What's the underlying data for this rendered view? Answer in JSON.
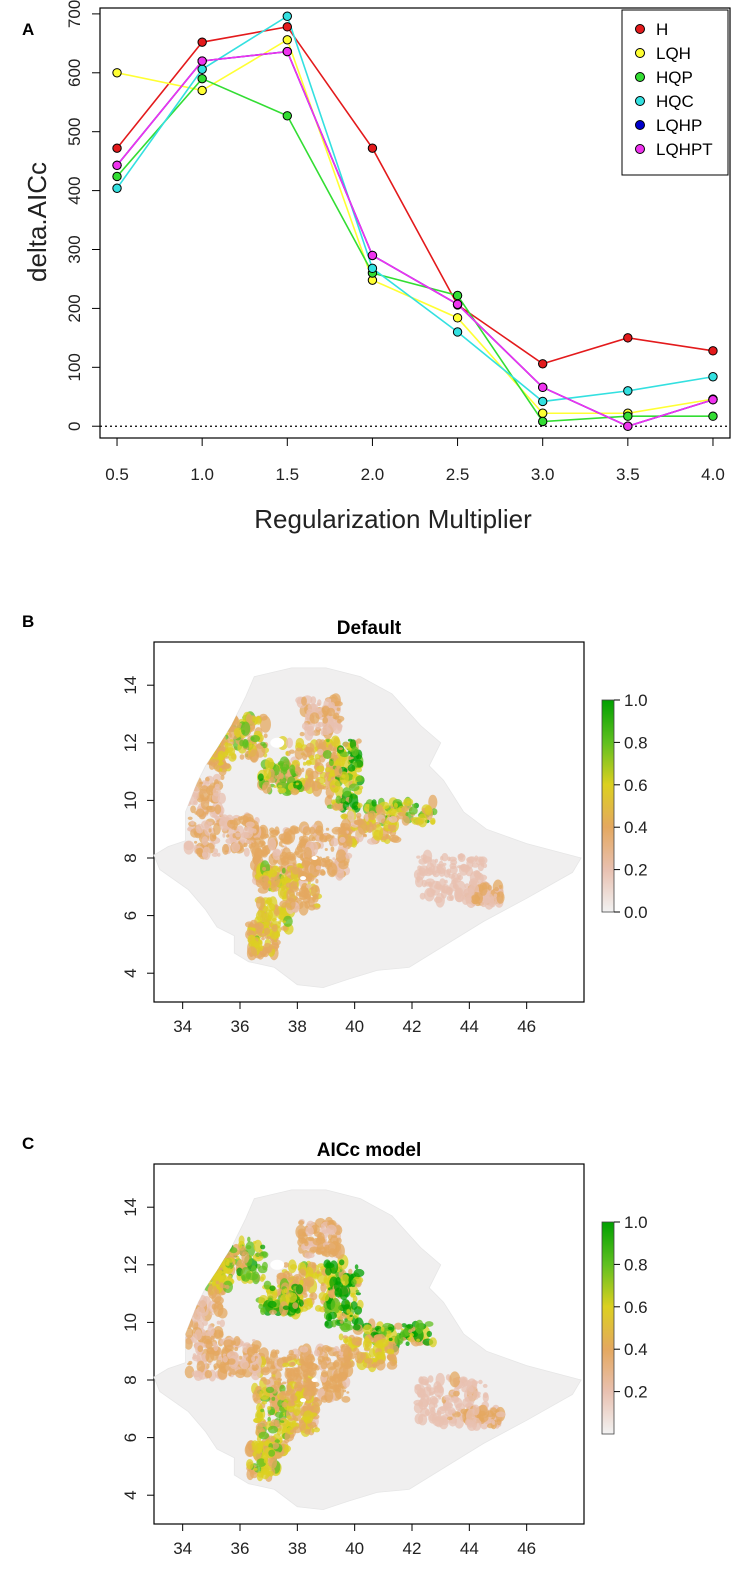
{
  "panels": {
    "a": {
      "letter": "A"
    },
    "b": {
      "letter": "B"
    },
    "c": {
      "letter": "C"
    }
  },
  "chart_data": [
    {
      "type": "line",
      "xlabel": "Regularization Multiplier",
      "ylabel": "delta.AICc",
      "x": [
        0.5,
        1.0,
        1.5,
        2.0,
        2.5,
        3.0,
        3.5,
        4.0
      ],
      "x_tick_labels": [
        "0.5",
        "1.0",
        "1.5",
        "2.0",
        "2.5",
        "3.0",
        "3.5",
        "4.0"
      ],
      "xlim": [
        0.4,
        4.1
      ],
      "ylim": [
        -20,
        710
      ],
      "y_ticks": [
        0,
        100,
        200,
        300,
        400,
        500,
        600,
        700
      ],
      "y_tick_labels": [
        "0",
        "100",
        "200",
        "300",
        "400",
        "500",
        "600",
        "700"
      ],
      "reference_line": {
        "y": 0,
        "style": "dotted"
      },
      "legend_position": "top-right",
      "series": [
        {
          "name": "H",
          "color": "#e31a1c",
          "values": [
            472,
            652,
            678,
            472,
            206,
            106,
            150,
            128
          ]
        },
        {
          "name": "LQH",
          "color": "#ffff33",
          "values": [
            600,
            570,
            656,
            248,
            184,
            22,
            22,
            46
          ]
        },
        {
          "name": "HQP",
          "color": "#33dd33",
          "values": [
            424,
            590,
            527,
            260,
            222,
            8,
            17,
            17
          ]
        },
        {
          "name": "HQC",
          "color": "#33e0e0",
          "values": [
            404,
            606,
            696,
            268,
            160,
            42,
            60,
            84
          ]
        },
        {
          "name": "LQHP",
          "color": "#0000cc",
          "values": [
            443,
            620,
            636,
            290,
            207,
            66,
            0,
            45
          ]
        },
        {
          "name": "LQHPT",
          "color": "#ee33ee",
          "values": [
            443,
            620,
            636,
            290,
            207,
            66,
            0,
            45
          ]
        }
      ]
    },
    {
      "type": "heatmap",
      "title": "Default",
      "x_ticks": [
        34,
        36,
        38,
        40,
        42,
        44,
        46
      ],
      "y_ticks": [
        4,
        6,
        8,
        10,
        12,
        14
      ],
      "xlim": [
        33,
        48
      ],
      "ylim": [
        3,
        15.5
      ],
      "colorbar": {
        "ticks": [
          "0.0",
          "0.2",
          "0.4",
          "0.6",
          "0.8",
          "1.0"
        ],
        "range": [
          0,
          1
        ]
      },
      "colors": [
        "#f2f2f2",
        "#e8c0b0",
        "#e4a860",
        "#dcd020",
        "#60c020",
        "#00a000"
      ]
    },
    {
      "type": "heatmap",
      "title": "AICc model",
      "x_ticks": [
        34,
        36,
        38,
        40,
        42,
        44,
        46
      ],
      "y_ticks": [
        4,
        6,
        8,
        10,
        12,
        14
      ],
      "xlim": [
        33,
        48
      ],
      "ylim": [
        3,
        15.5
      ],
      "colorbar": {
        "ticks": [
          "0.2",
          "0.4",
          "0.6",
          "0.8",
          "1.0"
        ],
        "range": [
          0,
          1
        ]
      },
      "colors": [
        "#f2f2f2",
        "#e8c0b0",
        "#e4a860",
        "#dcd020",
        "#60c020",
        "#00a000"
      ]
    }
  ]
}
